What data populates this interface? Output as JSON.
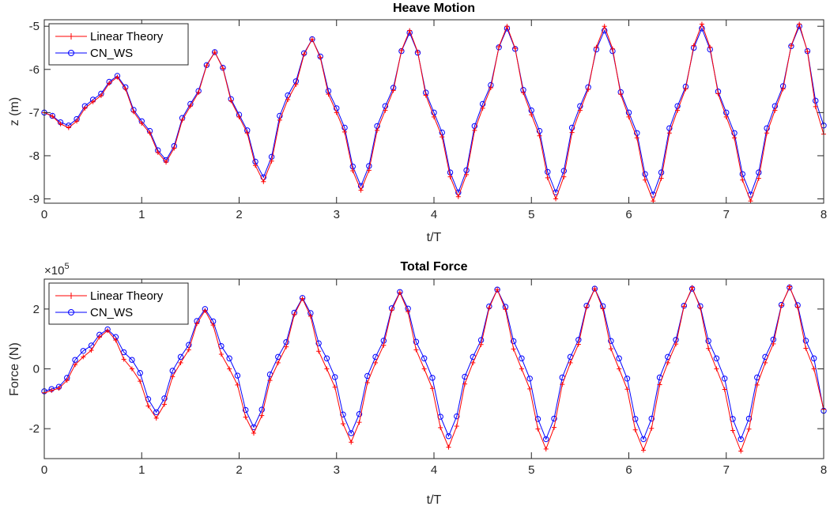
{
  "chart_data": [
    {
      "type": "line",
      "title": "Heave Motion",
      "xlabel": "t/T",
      "ylabel": "z (m)",
      "xlim": [
        0,
        8
      ],
      "ylim": [
        -9.1,
        -4.85
      ],
      "xticks": [
        0,
        1,
        2,
        3,
        4,
        5,
        6,
        7,
        8
      ],
      "xtick_labels": [
        "0",
        "1",
        "2",
        "3",
        "4",
        "5",
        "6",
        "7",
        "8"
      ],
      "yticks": [
        -9,
        -8,
        -7,
        -6,
        -5
      ],
      "ytick_labels": [
        "-9",
        "-8",
        "-7",
        "-6",
        "-5"
      ],
      "exponent_label": "",
      "grid": false,
      "legend_position": "top-left",
      "series": [
        {
          "name": "Linear Theory",
          "color": "#ff0000",
          "marker": "plus",
          "x": [
            0.0,
            0.25,
            0.5,
            0.75,
            1.0,
            1.25,
            1.5,
            1.75,
            2.0,
            2.25,
            2.5,
            2.75,
            3.0,
            3.25,
            3.5,
            3.75,
            4.0,
            4.25,
            4.5,
            4.75,
            5.0,
            5.25,
            5.5,
            5.75,
            6.0,
            6.25,
            6.5,
            6.75,
            7.0,
            7.25,
            7.5,
            7.75,
            8.0
          ],
          "y": [
            -7.0,
            -7.35,
            -6.75,
            -6.18,
            -7.25,
            -8.15,
            -6.85,
            -5.6,
            -7.1,
            -8.6,
            -6.7,
            -5.3,
            -7.0,
            -8.8,
            -6.95,
            -5.1,
            -7.1,
            -8.95,
            -6.9,
            -5.0,
            -7.05,
            -9.0,
            -6.95,
            -5.0,
            -7.1,
            -9.05,
            -6.95,
            -4.95,
            -7.1,
            -9.05,
            -6.95,
            -4.95,
            -7.5
          ]
        },
        {
          "name": "CN_WS",
          "color": "#0000ff",
          "marker": "circle",
          "x": [
            0.0,
            0.25,
            0.5,
            0.75,
            1.0,
            1.25,
            1.5,
            1.75,
            2.0,
            2.25,
            2.5,
            2.75,
            3.0,
            3.25,
            3.5,
            3.75,
            4.0,
            4.25,
            4.5,
            4.75,
            5.0,
            5.25,
            5.5,
            5.75,
            6.0,
            6.25,
            6.5,
            6.75,
            7.0,
            7.25,
            7.5,
            7.75,
            8.0
          ],
          "y": [
            -7.0,
            -7.3,
            -6.7,
            -6.15,
            -7.2,
            -8.1,
            -6.8,
            -5.6,
            -7.05,
            -8.5,
            -6.6,
            -5.3,
            -6.9,
            -8.7,
            -6.85,
            -5.15,
            -7.0,
            -8.85,
            -6.8,
            -5.05,
            -6.95,
            -8.85,
            -6.85,
            -5.1,
            -7.0,
            -8.9,
            -6.85,
            -5.05,
            -7.0,
            -8.9,
            -6.85,
            -5.0,
            -7.3
          ]
        }
      ]
    },
    {
      "type": "line",
      "title": "Total Force",
      "xlabel": "t/T",
      "ylabel": "Force (N)",
      "xlim": [
        0,
        8
      ],
      "ylim": [
        -300000,
        300000
      ],
      "xticks": [
        0,
        1,
        2,
        3,
        4,
        5,
        6,
        7,
        8
      ],
      "xtick_labels": [
        "0",
        "1",
        "2",
        "3",
        "4",
        "5",
        "6",
        "7",
        "8"
      ],
      "yticks": [
        -200000,
        0,
        200000
      ],
      "ytick_labels": [
        "-2",
        "0",
        "2"
      ],
      "exponent_label": "×10",
      "exponent_power": "5",
      "grid": false,
      "legend_position": "top-left",
      "series": [
        {
          "name": "Linear Theory",
          "color": "#ff0000",
          "marker": "plus",
          "x": [
            0.0,
            0.15,
            0.4,
            0.65,
            0.9,
            1.15,
            1.4,
            1.65,
            1.9,
            2.15,
            2.4,
            2.65,
            2.9,
            3.15,
            3.4,
            3.65,
            3.9,
            4.15,
            4.4,
            4.65,
            4.9,
            5.15,
            5.4,
            5.65,
            5.9,
            6.15,
            6.4,
            6.65,
            6.9,
            7.15,
            7.4,
            7.65,
            7.9,
            8.0
          ],
          "y": [
            -80000,
            -65000,
            40000,
            128000,
            0,
            -165000,
            20000,
            195000,
            0,
            -215000,
            20000,
            235000,
            0,
            -245000,
            20000,
            255000,
            0,
            -262000,
            20000,
            265000,
            0,
            -268000,
            20000,
            268000,
            0,
            -272000,
            20000,
            272000,
            0,
            -275000,
            20000,
            275000,
            0,
            -135000
          ]
        },
        {
          "name": "CN_WS",
          "color": "#0000ff",
          "marker": "circle",
          "x": [
            0.0,
            0.15,
            0.4,
            0.65,
            0.9,
            1.15,
            1.4,
            1.65,
            1.9,
            2.15,
            2.4,
            2.65,
            2.9,
            3.15,
            3.4,
            3.65,
            3.9,
            4.15,
            4.4,
            4.65,
            4.9,
            5.15,
            5.4,
            5.65,
            5.9,
            6.15,
            6.4,
            6.65,
            6.9,
            7.15,
            7.4,
            7.65,
            7.9,
            8.0
          ],
          "y": [
            -75000,
            -60000,
            60000,
            132000,
            30000,
            -145000,
            40000,
            200000,
            35000,
            -195000,
            40000,
            237000,
            35000,
            -215000,
            40000,
            257000,
            35000,
            -225000,
            40000,
            265000,
            35000,
            -235000,
            40000,
            268000,
            35000,
            -235000,
            40000,
            268000,
            35000,
            -235000,
            40000,
            272000,
            35000,
            -140000
          ]
        }
      ]
    }
  ]
}
